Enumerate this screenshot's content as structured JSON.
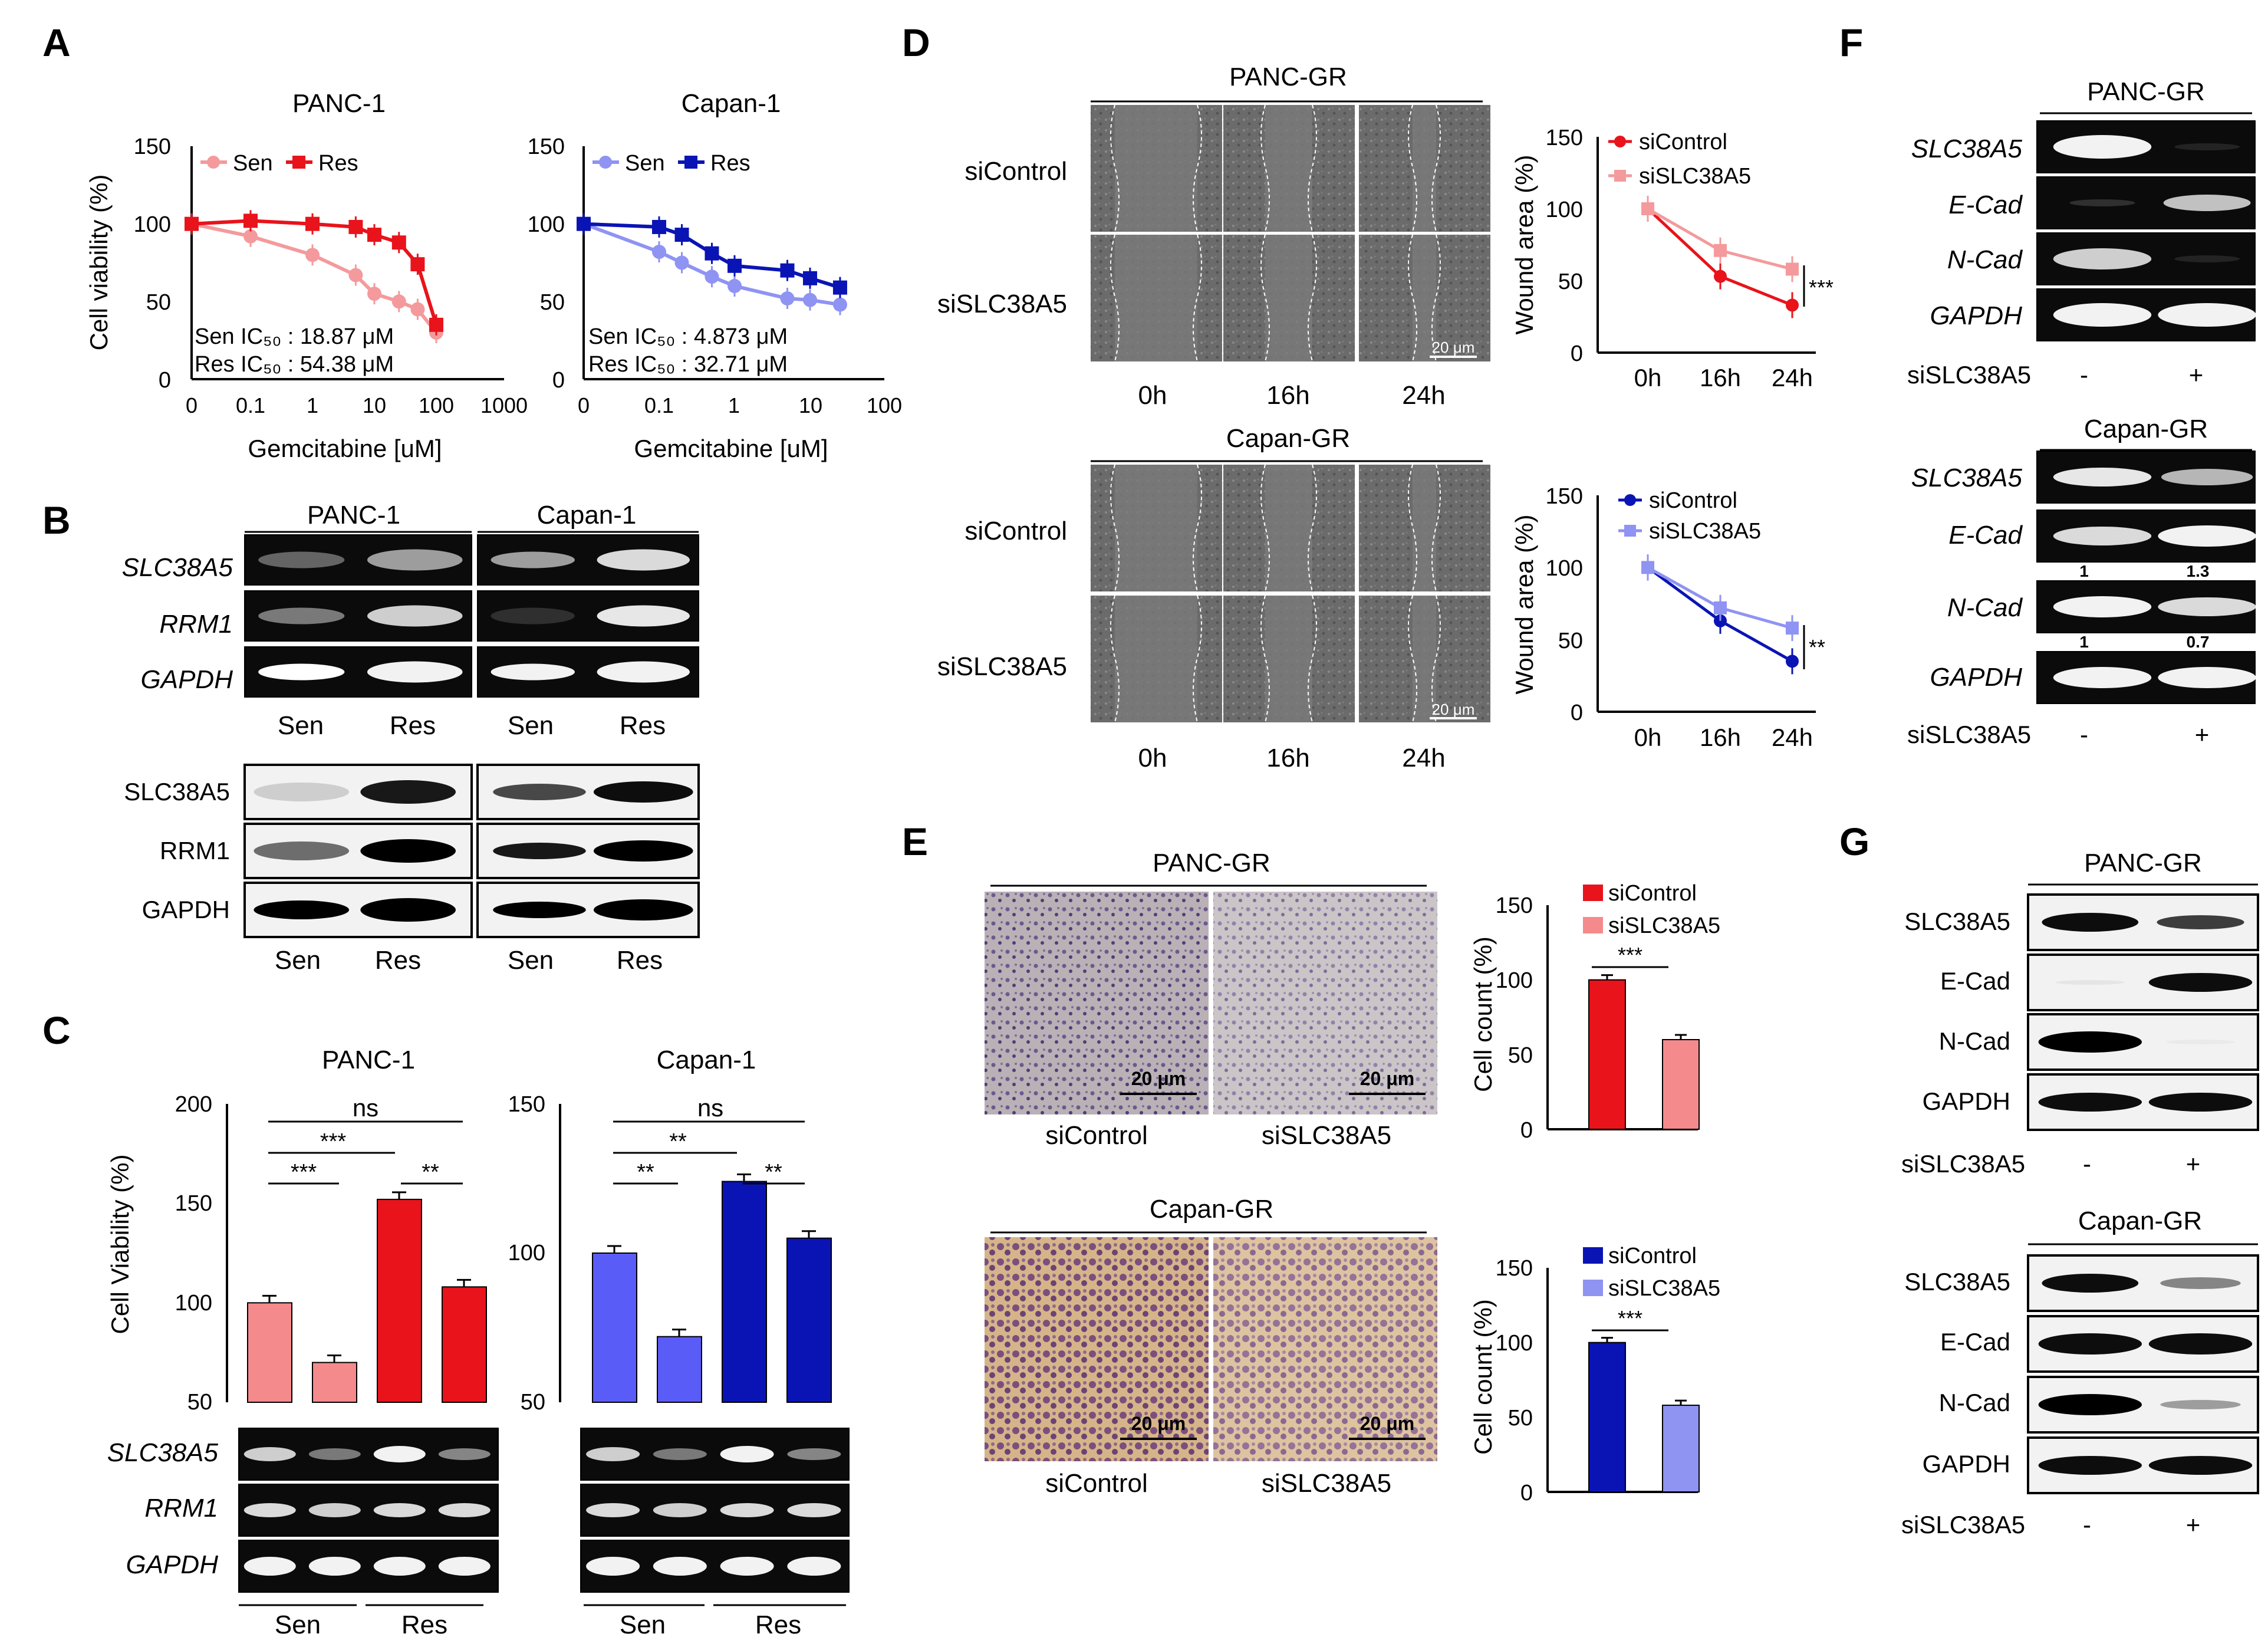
{
  "A": {
    "letter": "A",
    "xlabel": "Gemcitabine [uM]",
    "ylabel": "Cell viability (%)",
    "panc1": {
      "title": "PANC-1",
      "ticks_x": [
        "0",
        "0.1",
        "1",
        "10",
        "100",
        "1000"
      ],
      "ticks_y": [
        "0",
        "50",
        "100",
        "150"
      ],
      "legend": [
        "Sen",
        "Res"
      ],
      "ic50_sen": "Sen IC₅₀ : 18.87 μM",
      "ic50_res": "Res IC₅₀ : 54.38 μM"
    },
    "capan1": {
      "title": "Capan-1",
      "ticks_x": [
        "0",
        "0.1",
        "1",
        "10",
        "100"
      ],
      "ticks_y": [
        "0",
        "50",
        "100",
        "150"
      ],
      "legend": [
        "Sen",
        "Res"
      ],
      "ic50_sen": "Sen IC₅₀ : 4.873 μM",
      "ic50_res": "Res IC₅₀ : 32.71 μM"
    }
  },
  "B": {
    "letter": "B",
    "col_panc": "PANC-1",
    "col_capan": "Capan-1",
    "pcr_rows": [
      "SLC38A5",
      "RRM1",
      "GAPDH"
    ],
    "wb_rows": [
      "SLC38A5",
      "RRM1",
      "GAPDH"
    ],
    "lanes": [
      "Sen",
      "Res",
      "Sen",
      "Res"
    ]
  },
  "C": {
    "letter": "C",
    "ylabel": "Cell Viability (%)",
    "panc1": {
      "title": "PANC-1",
      "ticks_y": [
        "50",
        "100",
        "150",
        "200"
      ],
      "sig": [
        "ns",
        "***",
        "***",
        "**"
      ]
    },
    "capan1": {
      "title": "Capan-1",
      "ticks_y": [
        "50",
        "100",
        "150"
      ],
      "sig": [
        "ns",
        "**",
        "**",
        "**"
      ]
    },
    "gel_rows": [
      "SLC38A5",
      "RRM1",
      "GAPDH"
    ],
    "groups": [
      "Sen",
      "Res",
      "Sen",
      "Res"
    ]
  },
  "D": {
    "letter": "D",
    "panc_title": "PANC-GR",
    "capan_title": "Capan-GR",
    "row_labels": [
      "siControl",
      "siSLC38A5"
    ],
    "times": [
      "0h",
      "16h",
      "24h"
    ],
    "scale": "20 μm",
    "ylabel": "Wound area (%)",
    "ticks_y": [
      "0",
      "50",
      "100",
      "150"
    ],
    "legend": [
      "siControl",
      "siSLC38A5"
    ],
    "sig_top": "***",
    "sig_bottom": "**"
  },
  "E": {
    "letter": "E",
    "panc_title": "PANC-GR",
    "capan_title": "Capan-GR",
    "col_labels": [
      "siControl",
      "siSLC38A5"
    ],
    "scale": "20 μm",
    "ylabel": "Cell count (%)",
    "ticks_y": [
      "0",
      "50",
      "100",
      "150"
    ],
    "legend": [
      "siControl",
      "siSLC38A5"
    ],
    "sig": "***"
  },
  "F": {
    "letter": "F",
    "panc_title": "PANC-GR",
    "capan_title": "Capan-GR",
    "rows": [
      "SLC38A5",
      "E-Cad",
      "N-Cad",
      "GAPDH"
    ],
    "si_label": "siSLC38A5",
    "minus": "-",
    "plus": "+",
    "ecad_q": [
      "1",
      "1.3"
    ],
    "ncad_q": [
      "1",
      "0.7"
    ]
  },
  "G": {
    "letter": "G",
    "panc_title": "PANC-GR",
    "capan_title": "Capan-GR",
    "rows": [
      "SLC38A5",
      "E-Cad",
      "N-Cad",
      "GAPDH"
    ],
    "si_label": "siSLC38A5",
    "minus": "-",
    "plus": "+"
  },
  "colors": {
    "red": "#e8131b",
    "pink": "#f49a9c",
    "blue": "#0a14b4",
    "lightblue": "#8f93f2",
    "bar_pink": "#f58a8c",
    "bar_lblue": "#5a5cf7"
  },
  "chart_data": [
    {
      "type": "line",
      "title": "PANC-1",
      "xlabel": "Gemcitabine [uM]",
      "ylabel": "Cell viability (%)",
      "ylim": [
        0,
        150
      ],
      "x": [
        0,
        0.1,
        1,
        5,
        10,
        25,
        50,
        100
      ],
      "series": [
        {
          "name": "Sen",
          "values": [
            100,
            92,
            80,
            67,
            55,
            50,
            45,
            30
          ]
        },
        {
          "name": "Res",
          "values": [
            100,
            102,
            100,
            98,
            93,
            88,
            74,
            35
          ]
        }
      ]
    },
    {
      "type": "line",
      "title": "Capan-1",
      "xlabel": "Gemcitabine [uM]",
      "ylabel": "Cell viability (%)",
      "ylim": [
        0,
        150
      ],
      "x": [
        0,
        0.1,
        0.2,
        0.5,
        1,
        5,
        10,
        25
      ],
      "series": [
        {
          "name": "Sen",
          "values": [
            100,
            82,
            75,
            66,
            60,
            52,
            51,
            48
          ]
        },
        {
          "name": "Res",
          "values": [
            100,
            98,
            93,
            81,
            73,
            70,
            65,
            59
          ]
        }
      ]
    },
    {
      "type": "bar",
      "title": "PANC-1",
      "ylabel": "Cell Viability (%)",
      "ylim": [
        50,
        200
      ],
      "categories": [
        "Sen -",
        "Sen +",
        "Res -",
        "Res +"
      ],
      "values": [
        100,
        70,
        152,
        108
      ]
    },
    {
      "type": "bar",
      "title": "Capan-1",
      "ylabel": "Cell Viability (%)",
      "ylim": [
        50,
        150
      ],
      "categories": [
        "Sen -",
        "Sen +",
        "Res -",
        "Res +"
      ],
      "values": [
        100,
        72,
        124,
        105
      ]
    },
    {
      "type": "line",
      "title": "PANC-GR wound",
      "ylabel": "Wound area (%)",
      "ylim": [
        0,
        150
      ],
      "categories": [
        "0h",
        "16h",
        "24h"
      ],
      "series": [
        {
          "name": "siControl",
          "values": [
            100,
            53,
            33
          ]
        },
        {
          "name": "siSLC38A5",
          "values": [
            100,
            71,
            58
          ]
        }
      ]
    },
    {
      "type": "line",
      "title": "Capan-GR wound",
      "ylabel": "Wound area (%)",
      "ylim": [
        0,
        150
      ],
      "categories": [
        "0h",
        "16h",
        "24h"
      ],
      "series": [
        {
          "name": "siControl",
          "values": [
            100,
            63,
            35
          ]
        },
        {
          "name": "siSLC38A5",
          "values": [
            100,
            72,
            58
          ]
        }
      ]
    },
    {
      "type": "bar",
      "title": "PANC-GR invasion",
      "ylabel": "Cell count (%)",
      "ylim": [
        0,
        150
      ],
      "categories": [
        "siControl",
        "siSLC38A5"
      ],
      "values": [
        100,
        60
      ]
    },
    {
      "type": "bar",
      "title": "Capan-GR invasion",
      "ylabel": "Cell count (%)",
      "ylim": [
        0,
        150
      ],
      "categories": [
        "siControl",
        "siSLC38A5"
      ],
      "values": [
        100,
        58
      ]
    }
  ]
}
